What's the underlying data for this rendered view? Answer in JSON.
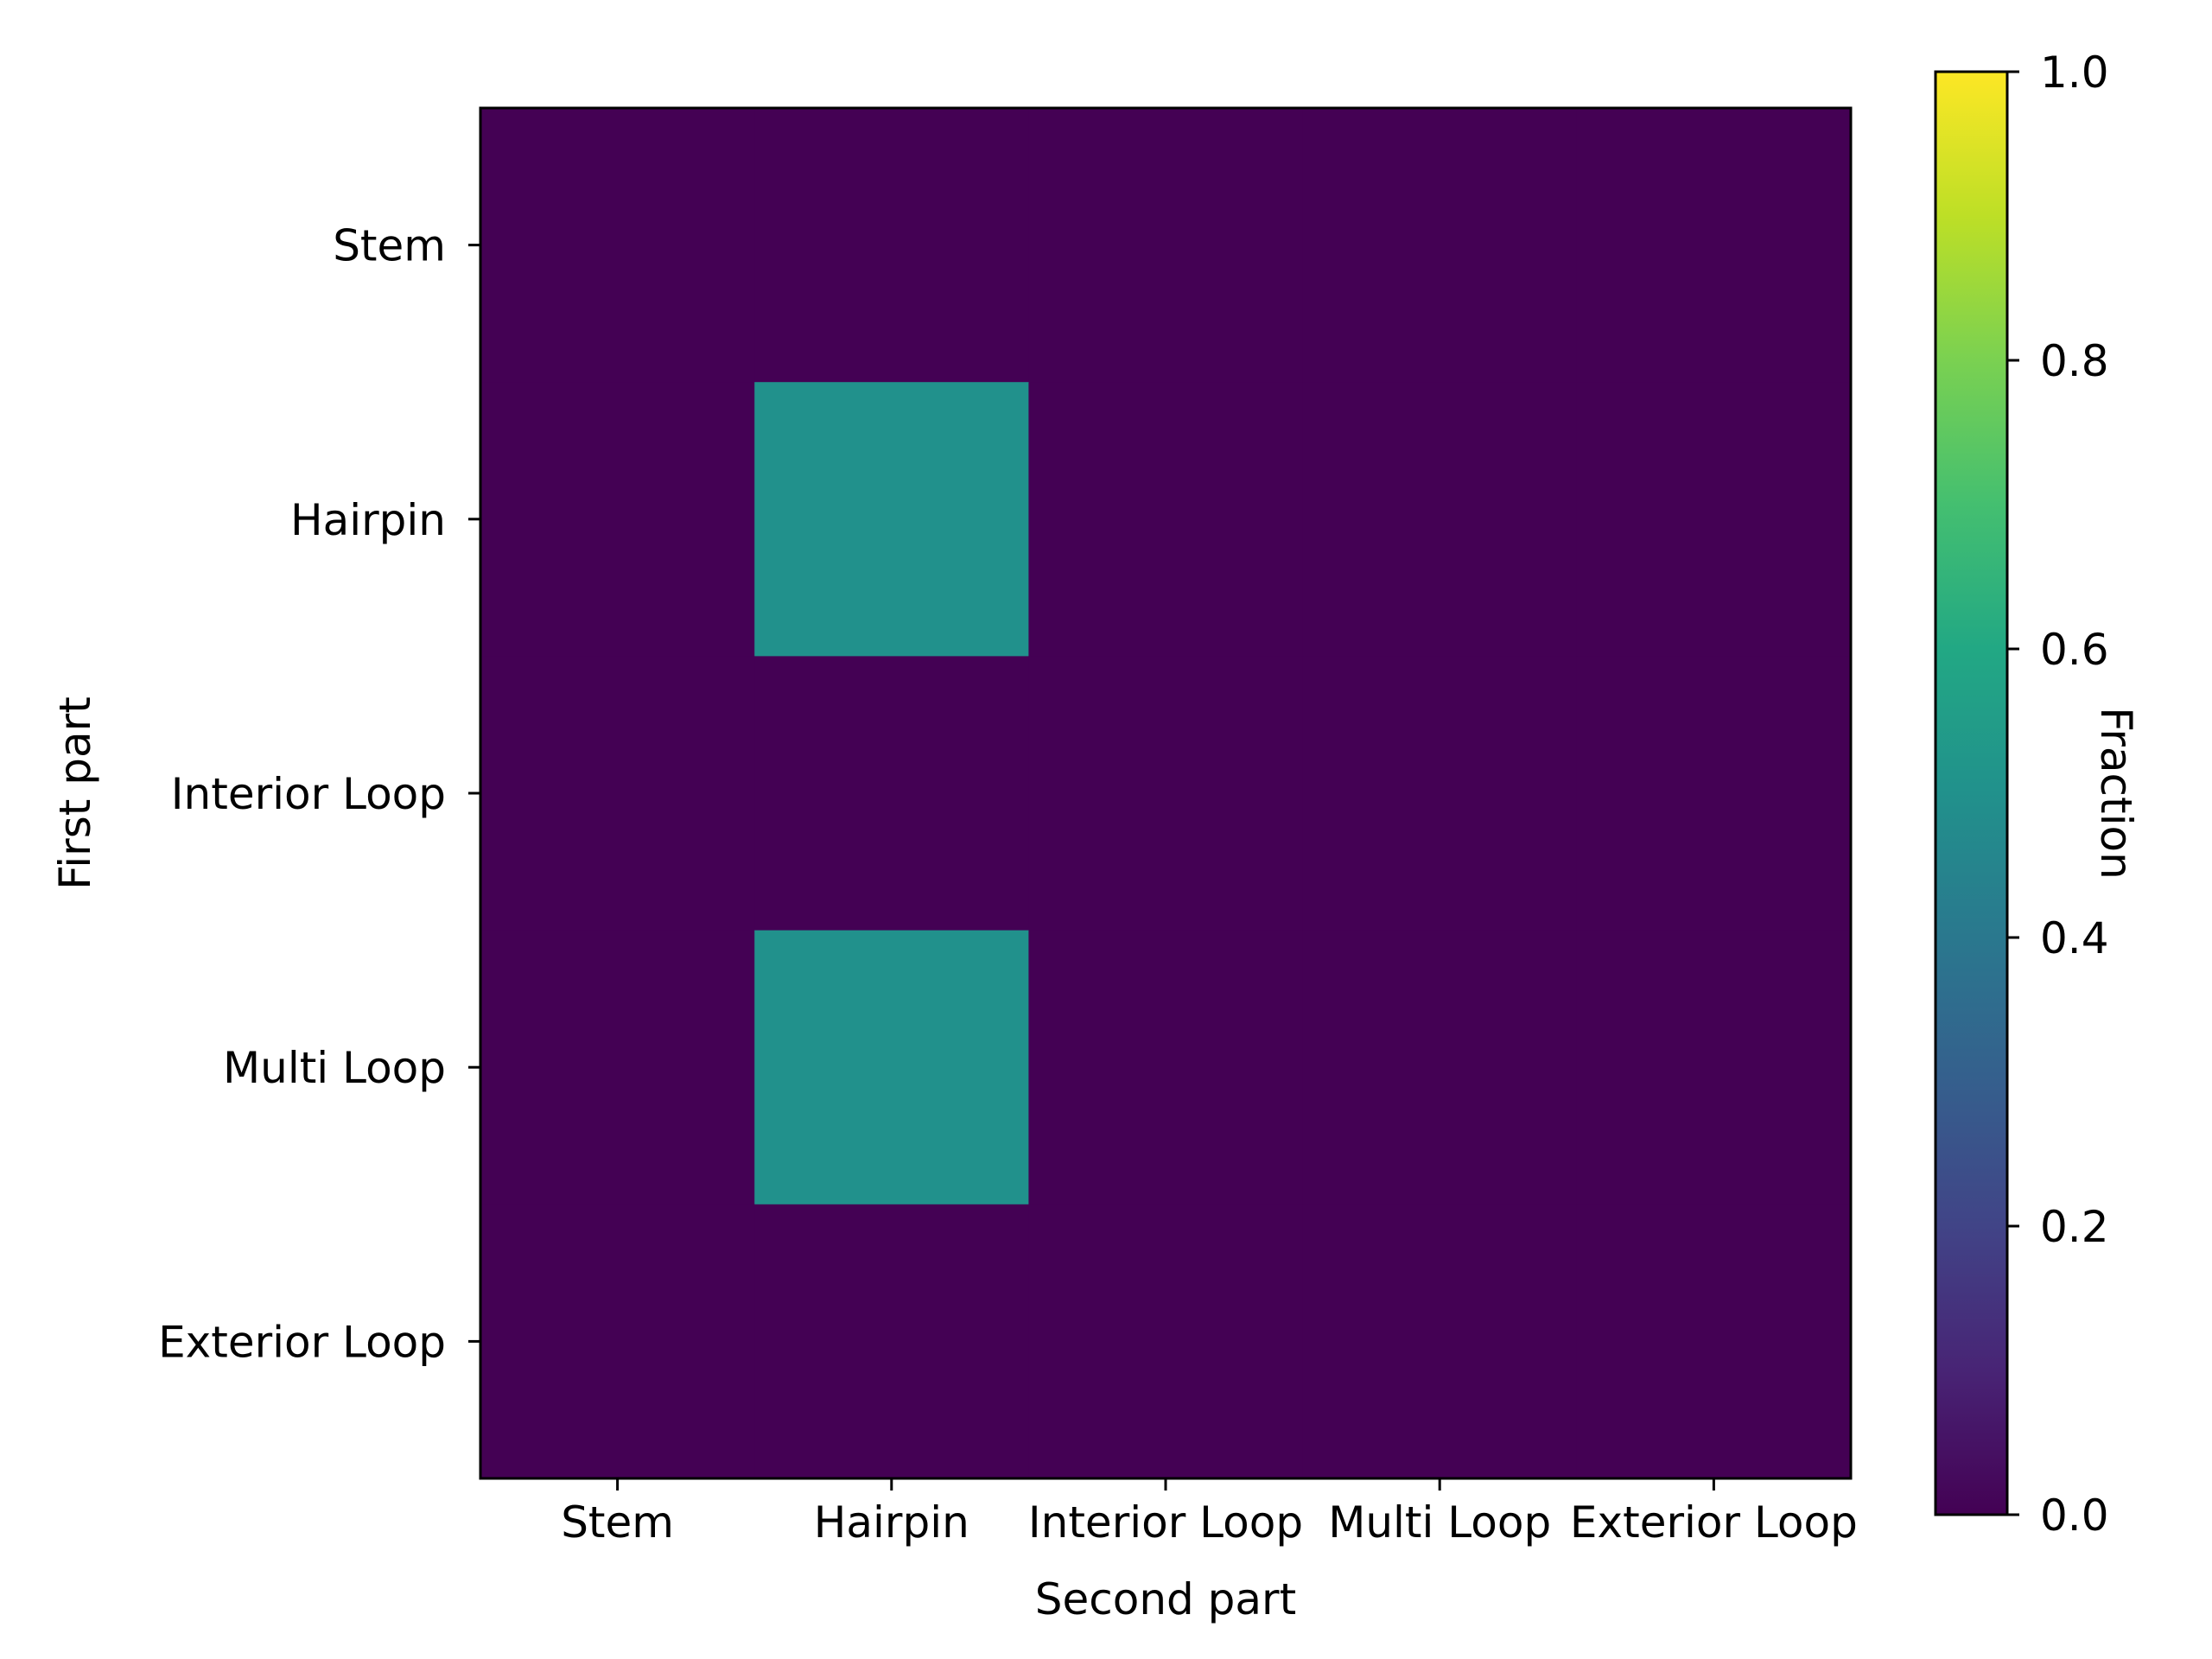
{
  "chart_data": {
    "type": "heatmap",
    "rows": [
      "Stem",
      "Hairpin",
      "Interior Loop",
      "Multi Loop",
      "Exterior Loop"
    ],
    "columns": [
      "Stem",
      "Hairpin",
      "Interior Loop",
      "Multi Loop",
      "Exterior Loop"
    ],
    "values": [
      [
        0,
        0,
        0,
        0,
        0
      ],
      [
        0,
        0.5,
        0,
        0,
        0
      ],
      [
        0,
        0,
        0,
        0,
        0
      ],
      [
        0,
        0.5,
        0,
        0,
        0
      ],
      [
        0,
        0,
        0,
        0,
        0
      ]
    ],
    "xlabel": "Second part",
    "ylabel": "First part",
    "colorbar": {
      "label": "Fraction",
      "range": [
        0,
        1
      ],
      "ticks": [
        "0.0",
        "0.2",
        "0.4",
        "0.6",
        "0.8",
        "1.0"
      ],
      "colormap": "viridis"
    },
    "colors": {
      "low": "#440154",
      "mid": "#21908c",
      "high": "#fde725"
    }
  }
}
